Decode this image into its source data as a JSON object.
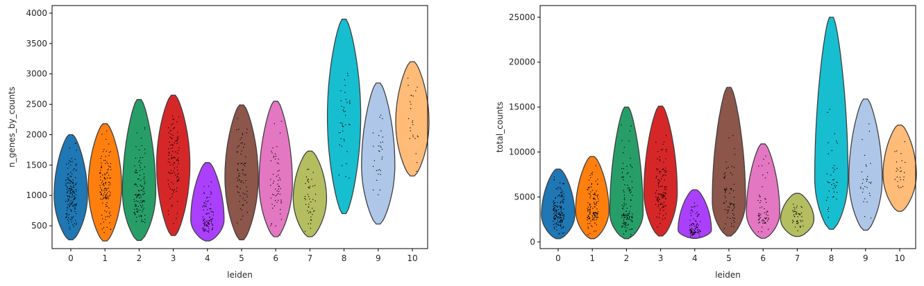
{
  "figure": {
    "background": "#ffffff"
  },
  "chart_data": [
    {
      "type": "violin",
      "xlabel": "leiden",
      "ylabel": "n_genes_by_counts",
      "categories": [
        "0",
        "1",
        "2",
        "3",
        "4",
        "5",
        "6",
        "7",
        "8",
        "9",
        "10"
      ],
      "ylim": [
        125,
        4125
      ],
      "yticks": [
        500,
        1000,
        1500,
        2000,
        2500,
        3000,
        3500,
        4000
      ],
      "colors": [
        "#1f77b4",
        "#ff7f0e",
        "#279e68",
        "#d62728",
        "#aa40fc",
        "#8c564b",
        "#e377c2",
        "#b5bd61",
        "#17becf",
        "#aec7e8",
        "#ffbb78"
      ],
      "stats": [
        {
          "min": 270,
          "max": 2000,
          "median": 1000,
          "n": 160
        },
        {
          "min": 250,
          "max": 2180,
          "median": 1150,
          "n": 130
        },
        {
          "min": 260,
          "max": 2580,
          "median": 1050,
          "n": 120
        },
        {
          "min": 340,
          "max": 2650,
          "median": 1500,
          "n": 110
        },
        {
          "min": 250,
          "max": 1540,
          "median": 600,
          "n": 90
        },
        {
          "min": 270,
          "max": 2490,
          "median": 1300,
          "n": 70
        },
        {
          "min": 320,
          "max": 2550,
          "median": 1200,
          "n": 60
        },
        {
          "min": 320,
          "max": 1730,
          "median": 950,
          "n": 45
        },
        {
          "min": 700,
          "max": 3900,
          "median": 2300,
          "n": 40
        },
        {
          "min": 530,
          "max": 2850,
          "median": 1500,
          "n": 30
        },
        {
          "min": 1320,
          "max": 3200,
          "median": 2200,
          "n": 25
        }
      ]
    },
    {
      "type": "violin",
      "xlabel": "leiden",
      "ylabel": "total_counts",
      "categories": [
        "0",
        "1",
        "2",
        "3",
        "4",
        "5",
        "6",
        "7",
        "8",
        "9",
        "10"
      ],
      "ylim": [
        -750,
        26300
      ],
      "yticks": [
        0,
        5000,
        10000,
        15000,
        20000,
        25000
      ],
      "colors": [
        "#1f77b4",
        "#ff7f0e",
        "#279e68",
        "#d62728",
        "#aa40fc",
        "#8c564b",
        "#e377c2",
        "#b5bd61",
        "#17becf",
        "#aec7e8",
        "#ffbb78"
      ],
      "stats": [
        {
          "min": 350,
          "max": 8100,
          "median": 3000,
          "n": 160
        },
        {
          "min": 350,
          "max": 9500,
          "median": 3500,
          "n": 130
        },
        {
          "min": 350,
          "max": 15000,
          "median": 3200,
          "n": 120
        },
        {
          "min": 650,
          "max": 15100,
          "median": 5500,
          "n": 110
        },
        {
          "min": 380,
          "max": 5800,
          "median": 1300,
          "n": 90
        },
        {
          "min": 650,
          "max": 17200,
          "median": 4500,
          "n": 70
        },
        {
          "min": 400,
          "max": 10900,
          "median": 3200,
          "n": 60
        },
        {
          "min": 600,
          "max": 5400,
          "median": 2500,
          "n": 45
        },
        {
          "min": 1400,
          "max": 25000,
          "median": 7000,
          "n": 40
        },
        {
          "min": 1300,
          "max": 15900,
          "median": 7000,
          "n": 30
        },
        {
          "min": 3400,
          "max": 13000,
          "median": 7500,
          "n": 25
        }
      ]
    }
  ]
}
